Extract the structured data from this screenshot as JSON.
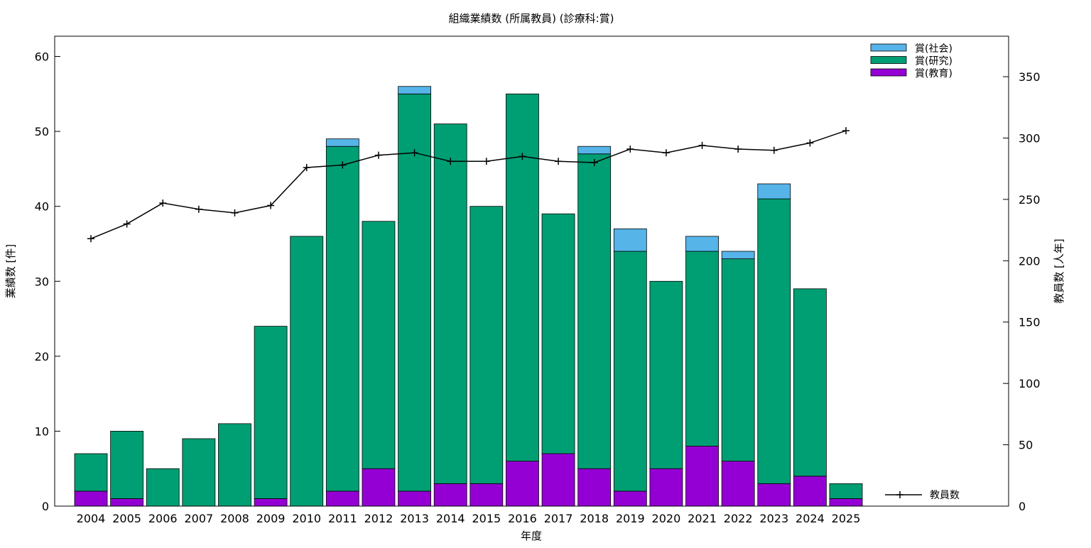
{
  "chart_data": {
    "type": "bar",
    "title": "組織業績数 (所属教員) (診療科:賞)",
    "xlabel": "年度",
    "ylabel": "業績数 [件]",
    "y2label": "教員数 [人年]",
    "stacked": true,
    "ylim": [
      0,
      62.7
    ],
    "y2lim": [
      0,
      383
    ],
    "yticks": [
      0,
      10,
      20,
      30,
      40,
      50,
      60
    ],
    "y2ticks": [
      0,
      50,
      100,
      150,
      200,
      250,
      300,
      350
    ],
    "categories": [
      "2004",
      "2005",
      "2006",
      "2007",
      "2008",
      "2009",
      "2010",
      "2011",
      "2012",
      "2013",
      "2014",
      "2015",
      "2016",
      "2017",
      "2018",
      "2019",
      "2020",
      "2021",
      "2022",
      "2023",
      "2024",
      "2025"
    ],
    "series": [
      {
        "name": "賞(教育)",
        "color": "#9400d3",
        "values": [
          2,
          1,
          0,
          0,
          0,
          1,
          0,
          2,
          5,
          2,
          3,
          3,
          6,
          7,
          5,
          2,
          5,
          8,
          6,
          3,
          4,
          1
        ]
      },
      {
        "name": "賞(研究)",
        "color": "#009e73",
        "values": [
          5,
          9,
          5,
          9,
          11,
          23,
          36,
          46,
          33,
          53,
          48,
          37,
          49,
          32,
          42,
          32,
          25,
          26,
          27,
          38,
          25,
          2
        ]
      },
      {
        "name": "賞(社会)",
        "color": "#56b4e9",
        "values": [
          0,
          0,
          0,
          0,
          0,
          0,
          0,
          1,
          0,
          1,
          0,
          0,
          0,
          0,
          1,
          3,
          0,
          2,
          1,
          2,
          0,
          0
        ]
      }
    ],
    "line_series": {
      "name": "教員数",
      "axis": "right",
      "color": "#000000",
      "values": [
        218,
        230,
        247,
        242,
        239,
        245,
        276,
        278,
        286,
        288,
        281,
        281,
        285,
        281,
        280,
        291,
        288,
        294,
        291,
        290,
        296,
        306
      ]
    },
    "grid": false,
    "legend": "top-right"
  }
}
